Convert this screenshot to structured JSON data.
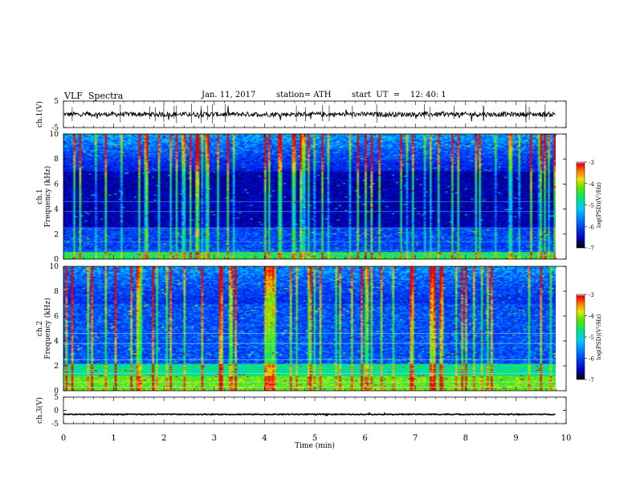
{
  "header": {
    "title": "VLF  Spectra",
    "date": "Jan. 11, 2017",
    "station": "station= ATH",
    "start": "start  UT  =    12: 40: 1"
  },
  "chart_data": [
    {
      "type": "line",
      "panel": "ch1-waveform",
      "ylabel": "ch.1(V)",
      "ylim": [
        -5,
        5
      ],
      "yticks": [
        "5",
        "-5"
      ],
      "xlim": [
        0,
        10
      ],
      "baseline_value": 0.0,
      "color": "#000000"
    },
    {
      "type": "heatmap",
      "panel": "ch1-spectrogram",
      "ylabel": "Frequency  (kHz)",
      "ylabel2": "ch.1",
      "ylim": [
        0,
        10
      ],
      "yticks": [
        "0",
        "2",
        "4",
        "6",
        "8",
        "10"
      ],
      "xlim": [
        0,
        9.83
      ],
      "colorbar": {
        "label": "log(PSD)(V²/Hz)",
        "ticks": [
          "-3",
          "-4",
          "-5",
          "-6",
          "-7"
        ],
        "range": [
          -7,
          -3
        ]
      }
    },
    {
      "type": "heatmap",
      "panel": "ch2-spectrogram",
      "ylabel": "Frequency  (kHz)",
      "ylabel2": "ch.2",
      "ylim": [
        0,
        10
      ],
      "yticks": [
        "0",
        "2",
        "4",
        "6",
        "8",
        "10"
      ],
      "xlim": [
        0,
        9.83
      ],
      "colorbar": {
        "label": "log(PSD)(V²/Hz)",
        "ticks": [
          "-3",
          "-4",
          "-5",
          "-6",
          "-7"
        ],
        "range": [
          -7,
          -3
        ]
      }
    },
    {
      "type": "line",
      "panel": "ch3-waveform",
      "ylabel": "ch.3(V)",
      "ylim": [
        -5,
        5
      ],
      "yticks": [
        "5",
        "0",
        "-5"
      ],
      "xlim": [
        0,
        10
      ],
      "baseline_value": -1.5,
      "color": "#000000"
    }
  ],
  "xaxis": {
    "label": "Time  (min)",
    "ticks": [
      "0",
      "1",
      "2",
      "3",
      "4",
      "5",
      "6",
      "7",
      "8",
      "9",
      "10"
    ],
    "range": [
      0,
      10
    ]
  }
}
